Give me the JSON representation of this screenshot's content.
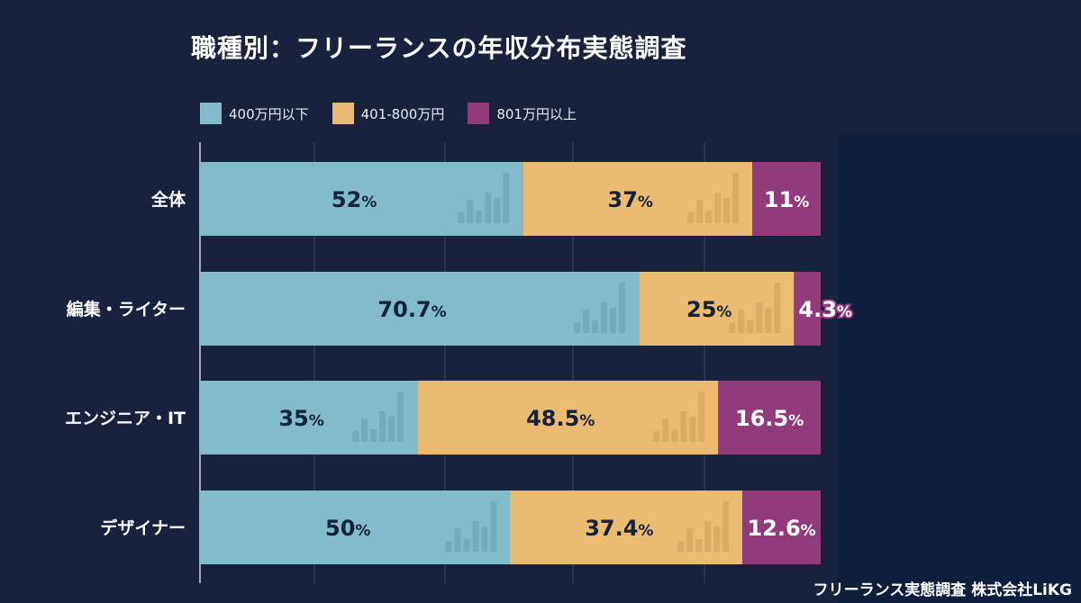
{
  "chart_data": {
    "type": "bar",
    "orientation": "horizontal",
    "stacked": true,
    "title": "職種別：フリーランスの年収分布実態調査",
    "categories": [
      "全体",
      "編集・ライター",
      "エンジニア・IT",
      "デザイナー"
    ],
    "series": [
      {
        "name": "400万円以下",
        "color": "#82bccb",
        "values": [
          52,
          70.7,
          35,
          50
        ]
      },
      {
        "name": "401-800万円",
        "color": "#ebbb72",
        "values": [
          37,
          25,
          48.5,
          37.4
        ]
      },
      {
        "name": "801万円以上",
        "color": "#923a7a",
        "values": [
          11,
          4.3,
          16.5,
          12.6
        ]
      }
    ],
    "value_suffix": "%",
    "xlim": [
      0,
      100
    ],
    "grid": true,
    "legend_position": "top-left"
  },
  "footer": "フリーランス実態調査  株式会社LiKG"
}
